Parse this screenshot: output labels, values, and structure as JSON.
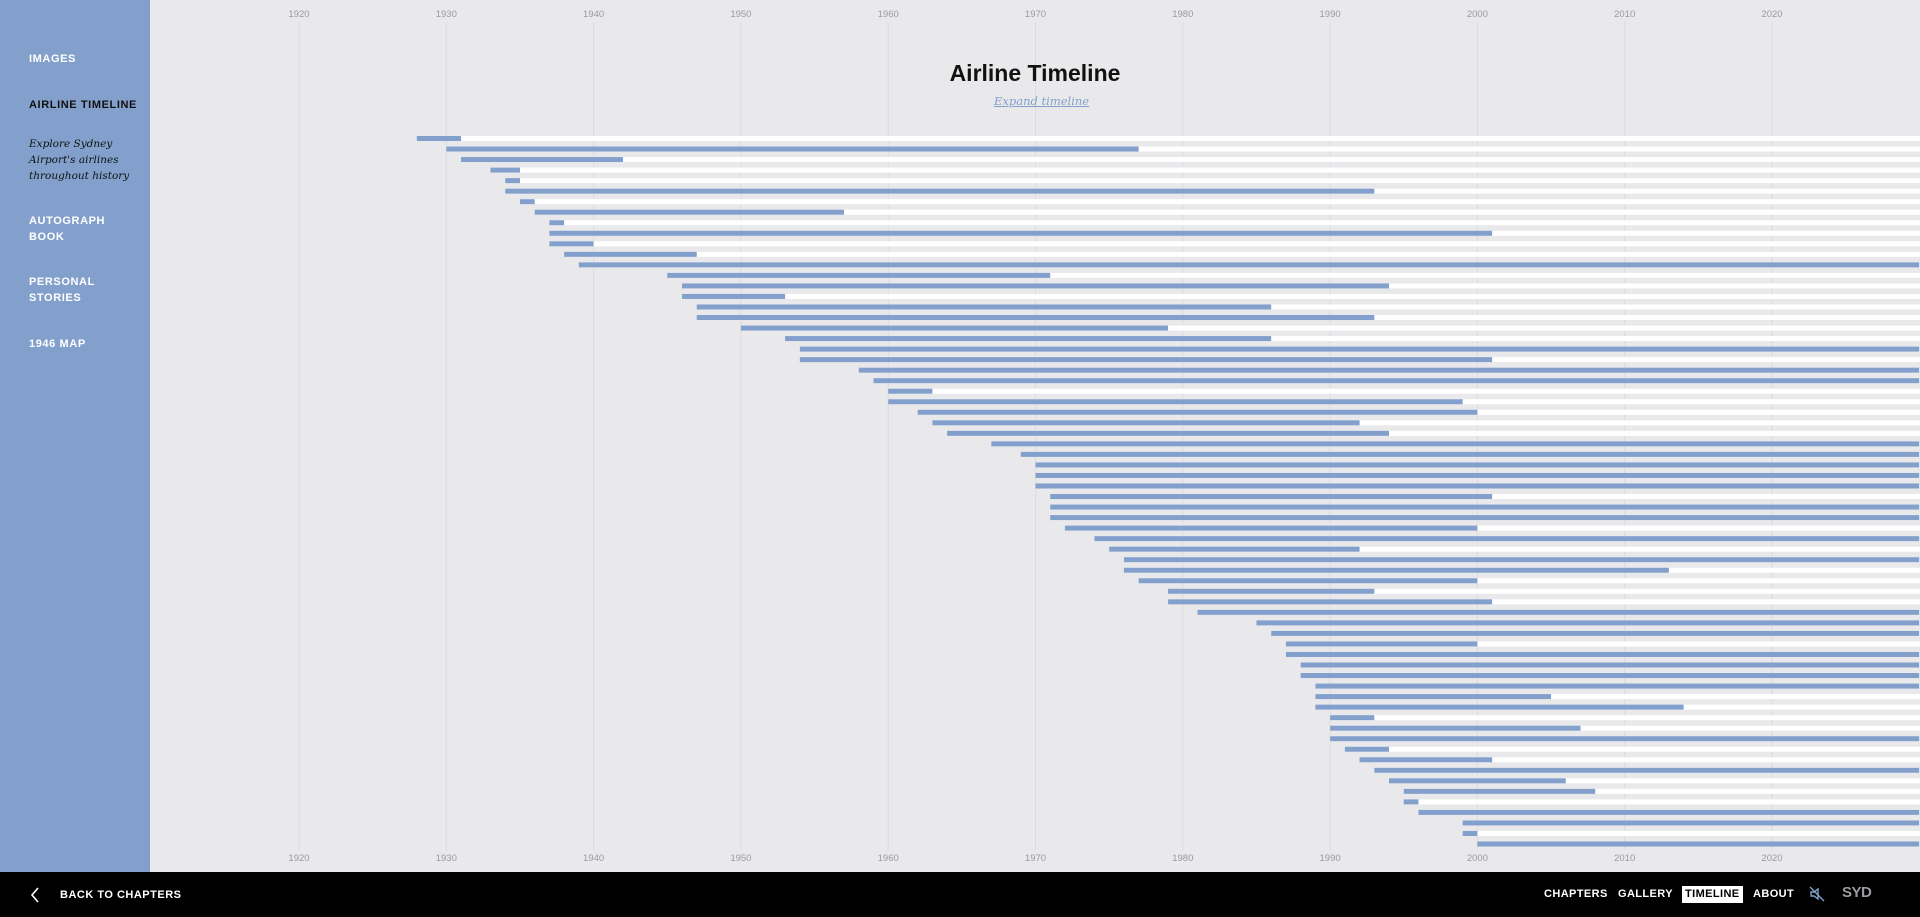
{
  "sidebar": {
    "items": [
      {
        "label": "IMAGES",
        "active": false
      },
      {
        "label": "AIRLINE TIMELINE",
        "active": true
      },
      {
        "label": "AUTOGRAPH BOOK",
        "active": false
      },
      {
        "label": "PERSONAL STORIES",
        "active": false
      },
      {
        "label": "1946 MAP",
        "active": false
      }
    ],
    "active_description": "Explore Sydney Airport's airlines throughout history"
  },
  "timeline": {
    "title": "Airline Timeline",
    "expand_label": "Expand timeline"
  },
  "chart_data": {
    "type": "bar",
    "orientation": "horizontal",
    "x_ticks": [
      "1920",
      "1930",
      "1940",
      "1950",
      "1960",
      "1970",
      "1980",
      "1990",
      "2000",
      "2010",
      "2020"
    ],
    "xlim": [
      1912,
      2030
    ],
    "grid": true,
    "bar_color": "#82a0cb",
    "track_color": "#ffffff",
    "bars": [
      [
        1928,
        1931
      ],
      [
        1930,
        1977
      ],
      [
        1931,
        1942
      ],
      [
        1933,
        1935
      ],
      [
        1934,
        1935
      ],
      [
        1934,
        1993
      ],
      [
        1935,
        1936
      ],
      [
        1936,
        1957
      ],
      [
        1937,
        1938
      ],
      [
        1937,
        2001
      ],
      [
        1937,
        1940
      ],
      [
        1938,
        1947
      ],
      [
        1939,
        2030
      ],
      [
        1945,
        1971
      ],
      [
        1946,
        1994
      ],
      [
        1946,
        1953
      ],
      [
        1947,
        1986
      ],
      [
        1947,
        1993
      ],
      [
        1950,
        1979
      ],
      [
        1953,
        1986
      ],
      [
        1954,
        2030
      ],
      [
        1954,
        2001
      ],
      [
        1958,
        2030
      ],
      [
        1959,
        2030
      ],
      [
        1960,
        1963
      ],
      [
        1960,
        1999
      ],
      [
        1962,
        2000
      ],
      [
        1963,
        1992
      ],
      [
        1964,
        1994
      ],
      [
        1967,
        2030
      ],
      [
        1969,
        2030
      ],
      [
        1970,
        2030
      ],
      [
        1970,
        2030
      ],
      [
        1970,
        2030
      ],
      [
        1971,
        2001
      ],
      [
        1971,
        2030
      ],
      [
        1971,
        2030
      ],
      [
        1972,
        2000
      ],
      [
        1974,
        2030
      ],
      [
        1975,
        1992
      ],
      [
        1976,
        2030
      ],
      [
        1976,
        2013
      ],
      [
        1977,
        2000
      ],
      [
        1979,
        1993
      ],
      [
        1979,
        2001
      ],
      [
        1981,
        2030
      ],
      [
        1985,
        2030
      ],
      [
        1986,
        2030
      ],
      [
        1987,
        2000
      ],
      [
        1987,
        2030
      ],
      [
        1988,
        2030
      ],
      [
        1988,
        2030
      ],
      [
        1989,
        2030
      ],
      [
        1989,
        2005
      ],
      [
        1989,
        2014
      ],
      [
        1990,
        1993
      ],
      [
        1990,
        2007
      ],
      [
        1990,
        2030
      ],
      [
        1991,
        1994
      ],
      [
        1992,
        2001
      ],
      [
        1993,
        2030
      ],
      [
        1994,
        2006
      ],
      [
        1995,
        2008
      ],
      [
        1995,
        1996
      ],
      [
        1996,
        2030
      ],
      [
        1999,
        2030
      ],
      [
        1999,
        2000
      ],
      [
        2000,
        2030
      ]
    ]
  },
  "footer": {
    "back_label": "BACK TO CHAPTERS",
    "nav": [
      "CHAPTERS",
      "GALLERY",
      "TIMELINE",
      "ABOUT"
    ],
    "active_nav": "TIMELINE",
    "sound_icon": "sound-muted-icon",
    "logo": "SYD"
  }
}
